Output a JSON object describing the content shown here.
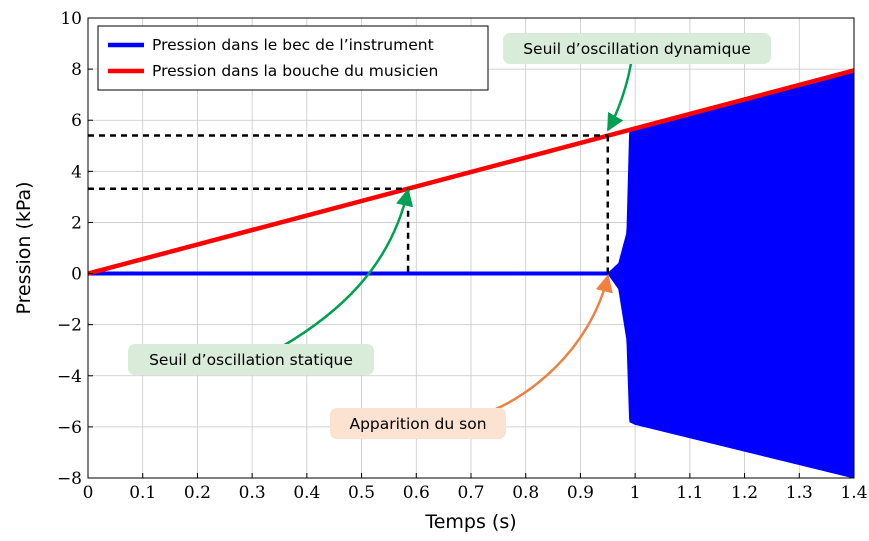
{
  "chart_data": {
    "type": "line",
    "xlabel": "Temps (s)",
    "ylabel": "Pression (kPa)",
    "xlim": [
      0,
      1.4
    ],
    "ylim": [
      -8,
      10
    ],
    "xticks": [
      0,
      0.1,
      0.2,
      0.3,
      0.4,
      0.5,
      0.6,
      0.7,
      0.8,
      0.9,
      1,
      1.1,
      1.2,
      1.3,
      1.4
    ],
    "xtick_labels": [
      "0",
      "0.1",
      "0.2",
      "0.3",
      "0.4",
      "0.5",
      "0.6",
      "0.7",
      "0.8",
      "0.9",
      "1",
      "1.1",
      "1.2",
      "1.3",
      "1.4"
    ],
    "yticks": [
      -8,
      -6,
      -4,
      -2,
      0,
      2,
      4,
      6,
      8,
      10
    ],
    "ytick_labels": [
      "−8",
      "−6",
      "−4",
      "−2",
      "0",
      "2",
      "4",
      "6",
      "8",
      "10"
    ],
    "grid": true,
    "legend_position": "top-left",
    "series": [
      {
        "name": "Pression dans le bec de l’instrument",
        "color": "#0000ff",
        "description_points": {
          "flat": {
            "x": [
              0,
              0.95
            ],
            "y": [
              0,
              0
            ]
          },
          "envelope_upper": {
            "x": [
              0.95,
              0.97,
              0.985,
              0.99,
              1.4
            ],
            "y": [
              0,
              0.4,
              1.6,
              5.6,
              7.9
            ]
          },
          "envelope_lower": {
            "x": [
              0.95,
              0.97,
              0.985,
              0.99,
              1.0,
              1.4
            ],
            "y": [
              0,
              -0.6,
              -2.6,
              -5.8,
              -5.9,
              -8.0
            ]
          }
        }
      },
      {
        "name": "Pression dans la bouche du musicien",
        "color": "#ff0000",
        "x": [
          0,
          1.4
        ],
        "y": [
          0,
          7.95
        ]
      }
    ],
    "reference_lines": [
      {
        "x": 0.585,
        "y": 3.32
      },
      {
        "x": 0.95,
        "y": 5.4
      }
    ],
    "annotations": [
      {
        "text": "Seuil d’oscillation dynamique",
        "target_x": 0.95,
        "target_y": 5.4,
        "box_color": "#d9ebd9",
        "arrow_color": "#00a050"
      },
      {
        "text": "Seuil d’oscillation statique",
        "target_x": 0.585,
        "target_y": 3.32,
        "box_color": "#d9ebd9",
        "arrow_color": "#00a050"
      },
      {
        "text": "Apparition du son",
        "target_x": 0.95,
        "target_y": 0,
        "box_color": "#fbe2d1",
        "arrow_color": "#f08040"
      }
    ]
  }
}
